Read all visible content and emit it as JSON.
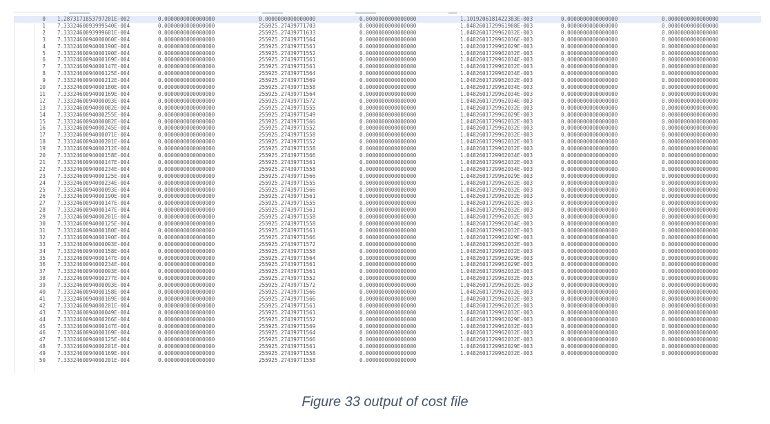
{
  "table": {
    "rows": [
      {
        "index": "0",
        "values": [
          "1.2873171853797201E-002",
          "0.0000000000000000",
          "0.0000000000000000",
          "0.0000000000000000",
          "1.1019206181422383E-003",
          "0.0000000000000000",
          "0.0000000000000000"
        ]
      },
      {
        "index": "1",
        "values": [
          "7.3332460093999540E-004",
          "0.0000000000000000",
          "255925.27439771703",
          "0.0000000000000000",
          "1.0482601729961908E-003",
          "0.0000000000000000",
          "0.0000000000000000"
        ]
      },
      {
        "index": "2",
        "values": [
          "7.3332460093999681E-004",
          "0.0000000000000000",
          "255925.27439771633",
          "0.0000000000000000",
          "1.0482601729962032E-003",
          "0.0000000000000000",
          "0.0000000000000000"
        ]
      },
      {
        "index": "3",
        "values": [
          "7.3332460094000060E-004",
          "0.0000000000000000",
          "255925.27439771564",
          "0.0000000000000000",
          "1.0482601729962036E-003",
          "0.0000000000000000",
          "0.0000000000000000"
        ]
      },
      {
        "index": "4",
        "values": [
          "7.3332460094000190E-004",
          "0.0000000000000000",
          "255925.27439771561",
          "0.0000000000000000",
          "1.0482601729962029E-003",
          "0.0000000000000000",
          "0.0000000000000000"
        ]
      },
      {
        "index": "5",
        "values": [
          "7.3332460094000190E-004",
          "0.0000000000000000",
          "255925.27439771552",
          "0.0000000000000000",
          "1.0482601729962032E-003",
          "0.0000000000000000",
          "0.0000000000000000"
        ]
      },
      {
        "index": "6",
        "values": [
          "7.3332460094000169E-004",
          "0.0000000000000000",
          "255925.27439771561",
          "0.0000000000000000",
          "1.0482601729962034E-003",
          "0.0000000000000000",
          "0.0000000000000000"
        ]
      },
      {
        "index": "7",
        "values": [
          "7.3332460094000147E-004",
          "0.0000000000000000",
          "255925.27439771561",
          "0.0000000000000000",
          "1.0482601729962032E-003",
          "0.0000000000000000",
          "0.0000000000000000"
        ]
      },
      {
        "index": "8",
        "values": [
          "7.3332460094000125E-004",
          "0.0000000000000000",
          "255925.27439771564",
          "0.0000000000000000",
          "1.0482601729962034E-003",
          "0.0000000000000000",
          "0.0000000000000000"
        ]
      },
      {
        "index": "9",
        "values": [
          "7.3332460094000212E-004",
          "0.0000000000000000",
          "255925.27439771569",
          "0.0000000000000000",
          "1.0482601729962032E-003",
          "0.0000000000000000",
          "0.0000000000000000"
        ]
      },
      {
        "index": "10",
        "values": [
          "7.3332460094000180E-004",
          "0.0000000000000000",
          "255925.27439771558",
          "0.0000000000000000",
          "1.0482601729962034E-003",
          "0.0000000000000000",
          "0.0000000000000000"
        ]
      },
      {
        "index": "11",
        "values": [
          "7.3332460094000169E-004",
          "0.0000000000000000",
          "255925.27439771564",
          "0.0000000000000000",
          "1.0482601729962034E-003",
          "0.0000000000000000",
          "0.0000000000000000"
        ]
      },
      {
        "index": "12",
        "values": [
          "7.3332460094000093E-004",
          "0.0000000000000000",
          "255925.27439771572",
          "0.0000000000000000",
          "1.0482601729962034E-003",
          "0.0000000000000000",
          "0.0000000000000000"
        ]
      },
      {
        "index": "13",
        "values": [
          "7.3332460094000082E-004",
          "0.0000000000000000",
          "255925.27439771555",
          "0.0000000000000000",
          "1.0482601729962032E-003",
          "0.0000000000000000",
          "0.0000000000000000"
        ]
      },
      {
        "index": "14",
        "values": [
          "7.3332460094000255E-004",
          "0.0000000000000000",
          "255925.27439771549",
          "0.0000000000000000",
          "1.0482601729962029E-003",
          "0.0000000000000000",
          "0.0000000000000000"
        ]
      },
      {
        "index": "15",
        "values": [
          "7.3332460094000082E-004",
          "0.0000000000000000",
          "255925.27439771566",
          "0.0000000000000000",
          "1.0482601729962032E-003",
          "0.0000000000000000",
          "0.0000000000000000"
        ]
      },
      {
        "index": "16",
        "values": [
          "7.3332460094000245E-004",
          "0.0000000000000000",
          "255925.27439771552",
          "0.0000000000000000",
          "1.0482601729962032E-003",
          "0.0000000000000000",
          "0.0000000000000000"
        ]
      },
      {
        "index": "17",
        "values": [
          "7.3332460094000071E-004",
          "0.0000000000000000",
          "255925.27439771558",
          "0.0000000000000000",
          "1.0482601729962032E-003",
          "0.0000000000000000",
          "0.0000000000000000"
        ]
      },
      {
        "index": "18",
        "values": [
          "7.3332460094000201E-004",
          "0.0000000000000000",
          "255925.27439771552",
          "0.0000000000000000",
          "1.0482601729962032E-003",
          "0.0000000000000000",
          "0.0000000000000000"
        ]
      },
      {
        "index": "19",
        "values": [
          "7.3332460094000212E-004",
          "0.0000000000000000",
          "255925.27439771558",
          "0.0000000000000000",
          "1.0482601729962032E-003",
          "0.0000000000000000",
          "0.0000000000000000"
        ]
      },
      {
        "index": "20",
        "values": [
          "7.3332460094000158E-004",
          "0.0000000000000000",
          "255925.27439771566",
          "0.0000000000000000",
          "1.0482601729962034E-003",
          "0.0000000000000000",
          "0.0000000000000000"
        ]
      },
      {
        "index": "21",
        "values": [
          "7.3332460094000147E-004",
          "0.0000000000000000",
          "255925.27439771561",
          "0.0000000000000000",
          "1.0482601729962032E-003",
          "0.0000000000000000",
          "0.0000000000000000"
        ]
      },
      {
        "index": "22",
        "values": [
          "7.3332460094000234E-004",
          "0.0000000000000000",
          "255925.27439771558",
          "0.0000000000000000",
          "1.0482601729962034E-003",
          "0.0000000000000000",
          "0.0000000000000000"
        ]
      },
      {
        "index": "23",
        "values": [
          "7.3332460094000125E-004",
          "0.0000000000000000",
          "255925.27439771566",
          "0.0000000000000000",
          "1.0482601729962029E-003",
          "0.0000000000000000",
          "0.0000000000000000"
        ]
      },
      {
        "index": "24",
        "values": [
          "7.3332460094000234E-004",
          "0.0000000000000000",
          "255925.27439771555",
          "0.0000000000000000",
          "1.0482601729962032E-003",
          "0.0000000000000000",
          "0.0000000000000000"
        ]
      },
      {
        "index": "25",
        "values": [
          "7.3332460094000093E-004",
          "0.0000000000000000",
          "255925.27439771566",
          "0.0000000000000000",
          "1.0482601729962032E-003",
          "0.0000000000000000",
          "0.0000000000000000"
        ]
      },
      {
        "index": "26",
        "values": [
          "7.3332460094000190E-004",
          "0.0000000000000000",
          "255925.27439771561",
          "0.0000000000000000",
          "1.0482601729962032E-003",
          "0.0000000000000000",
          "0.0000000000000000"
        ]
      },
      {
        "index": "27",
        "values": [
          "7.3332460094000147E-004",
          "0.0000000000000000",
          "255925.27439771555",
          "0.0000000000000000",
          "1.0482601729962032E-003",
          "0.0000000000000000",
          "0.0000000000000000"
        ]
      },
      {
        "index": "28",
        "values": [
          "7.3332460094000147E-004",
          "0.0000000000000000",
          "255925.27439771561",
          "0.0000000000000000",
          "1.0482601729962032E-003",
          "0.0000000000000000",
          "0.0000000000000000"
        ]
      },
      {
        "index": "29",
        "values": [
          "7.3332460094000201E-004",
          "0.0000000000000000",
          "255925.27439771558",
          "0.0000000000000000",
          "1.0482601729962032E-003",
          "0.0000000000000000",
          "0.0000000000000000"
        ]
      },
      {
        "index": "30",
        "values": [
          "7.3332460094000125E-004",
          "0.0000000000000000",
          "255925.27439771558",
          "0.0000000000000000",
          "1.0482601729962034E-003",
          "0.0000000000000000",
          "0.0000000000000000"
        ]
      },
      {
        "index": "31",
        "values": [
          "7.3332460094000180E-004",
          "0.0000000000000000",
          "255925.27439771561",
          "0.0000000000000000",
          "1.0482601729962032E-003",
          "0.0000000000000000",
          "0.0000000000000000"
        ]
      },
      {
        "index": "32",
        "values": [
          "7.3332460094000190E-004",
          "0.0000000000000000",
          "255925.27439771566",
          "0.0000000000000000",
          "1.0482601729962029E-003",
          "0.0000000000000000",
          "0.0000000000000000"
        ]
      },
      {
        "index": "33",
        "values": [
          "7.3332460094000093E-004",
          "0.0000000000000000",
          "255925.27439771572",
          "0.0000000000000000",
          "1.0482601729962032E-003",
          "0.0000000000000000",
          "0.0000000000000000"
        ]
      },
      {
        "index": "34",
        "values": [
          "7.3332460094000158E-004",
          "0.0000000000000000",
          "255925.27439771558",
          "0.0000000000000000",
          "1.0482601729962032E-003",
          "0.0000000000000000",
          "0.0000000000000000"
        ]
      },
      {
        "index": "35",
        "values": [
          "7.3332460094000147E-004",
          "0.0000000000000000",
          "255925.27439771564",
          "0.0000000000000000",
          "1.0482601729962029E-003",
          "0.0000000000000000",
          "0.0000000000000000"
        ]
      },
      {
        "index": "36",
        "values": [
          "7.3332460094000234E-004",
          "0.0000000000000000",
          "255925.27439771561",
          "0.0000000000000000",
          "1.0482601729962029E-003",
          "0.0000000000000000",
          "0.0000000000000000"
        ]
      },
      {
        "index": "37",
        "values": [
          "7.3332460094000093E-004",
          "0.0000000000000000",
          "255925.27439771561",
          "0.0000000000000000",
          "1.0482601729962032E-003",
          "0.0000000000000000",
          "0.0000000000000000"
        ]
      },
      {
        "index": "38",
        "values": [
          "7.3332460094000277E-004",
          "0.0000000000000000",
          "255925.27439771552",
          "0.0000000000000000",
          "1.0482601729962032E-003",
          "0.0000000000000000",
          "0.0000000000000000"
        ]
      },
      {
        "index": "39",
        "values": [
          "7.3332460094000093E-004",
          "0.0000000000000000",
          "255925.27439771572",
          "0.0000000000000000",
          "1.0482601729962032E-003",
          "0.0000000000000000",
          "0.0000000000000000"
        ]
      },
      {
        "index": "40",
        "values": [
          "7.3332460094000158E-004",
          "0.0000000000000000",
          "255925.27439771566",
          "0.0000000000000000",
          "1.0482601729962032E-003",
          "0.0000000000000000",
          "0.0000000000000000"
        ]
      },
      {
        "index": "41",
        "values": [
          "7.3332460094000169E-004",
          "0.0000000000000000",
          "255925.27439771566",
          "0.0000000000000000",
          "1.0482601729962032E-003",
          "0.0000000000000000",
          "0.0000000000000000"
        ]
      },
      {
        "index": "42",
        "values": [
          "7.3332460094000201E-004",
          "0.0000000000000000",
          "255925.27439771561",
          "0.0000000000000000",
          "1.0482601729962032E-003",
          "0.0000000000000000",
          "0.0000000000000000"
        ]
      },
      {
        "index": "43",
        "values": [
          "7.3332460094000049E-004",
          "0.0000000000000000",
          "255925.27439771561",
          "0.0000000000000000",
          "1.0482601729962032E-003",
          "0.0000000000000000",
          "0.0000000000000000"
        ]
      },
      {
        "index": "44",
        "values": [
          "7.3332460094000266E-004",
          "0.0000000000000000",
          "255925.27439771552",
          "0.0000000000000000",
          "1.0482601729962029E-003",
          "0.0000000000000000",
          "0.0000000000000000"
        ]
      },
      {
        "index": "45",
        "values": [
          "7.3332460094000147E-004",
          "0.0000000000000000",
          "255925.27439771569",
          "0.0000000000000000",
          "1.0482601729962032E-003",
          "0.0000000000000000",
          "0.0000000000000000"
        ]
      },
      {
        "index": "46",
        "values": [
          "7.3332460094000169E-004",
          "0.0000000000000000",
          "255925.27439771564",
          "0.0000000000000000",
          "1.0482601729962032E-003",
          "0.0000000000000000",
          "0.0000000000000000"
        ]
      },
      {
        "index": "47",
        "values": [
          "7.3332460094000125E-004",
          "0.0000000000000000",
          "255925.27439771566",
          "0.0000000000000000",
          "1.0482601729962032E-003",
          "0.0000000000000000",
          "0.0000000000000000"
        ]
      },
      {
        "index": "48",
        "values": [
          "7.3332460094000201E-004",
          "0.0000000000000000",
          "255925.27439771561",
          "0.0000000000000000",
          "1.0482601729962029E-003",
          "0.0000000000000000",
          "0.0000000000000000"
        ]
      },
      {
        "index": "49",
        "values": [
          "7.3332460094000169E-004",
          "0.0000000000000000",
          "255925.27439771558",
          "0.0000000000000000",
          "1.0482601729962032E-003",
          "0.0000000000000000",
          "0.0000000000000000"
        ]
      },
      {
        "index": "50",
        "values": [
          "7.3332460094000201E-004",
          "0.0000000000000000",
          "255925.27439771558",
          "0.0000000000000000",
          "",
          "",
          ""
        ]
      }
    ],
    "highlighted_row": 0,
    "highlight_color": "#e4ebf9"
  },
  "caption": {
    "text": "Figure 33 output of cost file",
    "color": "#44546a"
  }
}
